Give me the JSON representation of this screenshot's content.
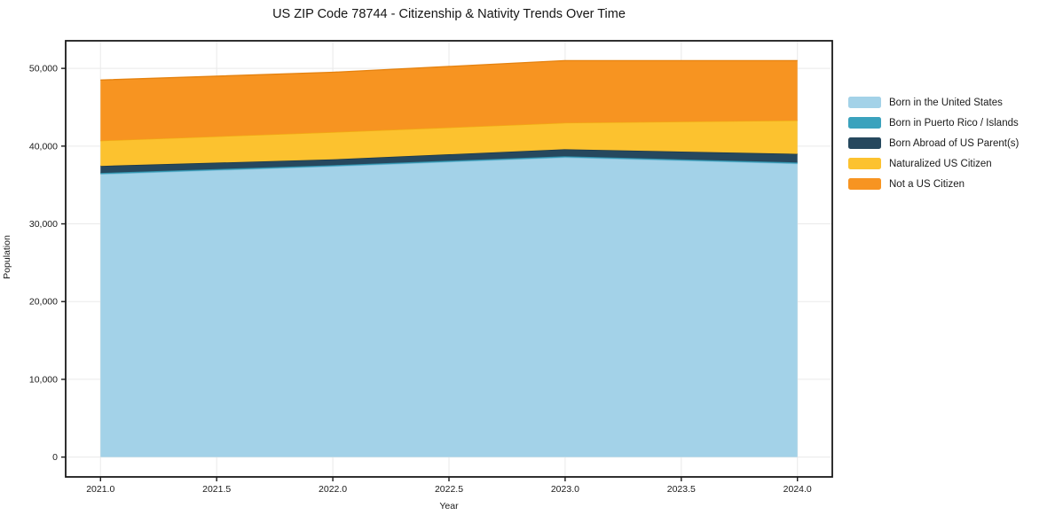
{
  "title": "US ZIP Code 78744 - Citizenship & Nativity Trends Over Time",
  "chart_data": {
    "type": "area",
    "stacked": true,
    "title": "US ZIP Code 78744 - Citizenship & Nativity Trends Over Time",
    "xlabel": "Year",
    "ylabel": "Population",
    "x": [
      2021,
      2022,
      2023,
      2024
    ],
    "series": [
      {
        "name": "Born in the United States",
        "color": "#a3d2e8",
        "edge_color": "#7fbcd9",
        "values": [
          36400,
          37400,
          38550,
          37750
        ]
      },
      {
        "name": "Born in Puerto Rico / Islands",
        "color": "#3aa2bd",
        "edge_color": "#2e8aa3",
        "values": [
          150,
          150,
          150,
          150
        ]
      },
      {
        "name": "Born Abroad of US Parent(s)",
        "color": "#26485e",
        "edge_color": "#1c3747",
        "values": [
          900,
          750,
          900,
          1100
        ]
      },
      {
        "name": "Naturalized US Citizen",
        "color": "#fcc22f",
        "edge_color": "#f1ab12",
        "values": [
          3250,
          3500,
          3400,
          4300
        ]
      },
      {
        "name": "Not a US Citizen",
        "color": "#f79421",
        "edge_color": "#e5820f",
        "values": [
          7800,
          7700,
          8000,
          7700
        ]
      }
    ],
    "stack_totals": [
      48500,
      49500,
      51000,
      51000
    ],
    "x_tick_labels": [
      "2021.0",
      "2021.5",
      "2022.0",
      "2022.5",
      "2023.0",
      "2023.5",
      "2024.0"
    ],
    "x_tick_values": [
      2021.0,
      2021.5,
      2022.0,
      2022.5,
      2023.0,
      2023.5,
      2024.0
    ],
    "y_tick_labels": [
      "0",
      "10,000",
      "20,000",
      "30,000",
      "40,000",
      "50,000"
    ],
    "y_tick_values": [
      0,
      10000,
      20000,
      30000,
      40000,
      50000
    ],
    "xlim": [
      2020.85,
      2024.15
    ],
    "ylim": [
      -2550,
      53550
    ],
    "grid": true,
    "grid_color": "#eaeaea",
    "frame_color": "#1a1a1a",
    "background_color": "#ffffff",
    "legend_position": "outside-right"
  }
}
